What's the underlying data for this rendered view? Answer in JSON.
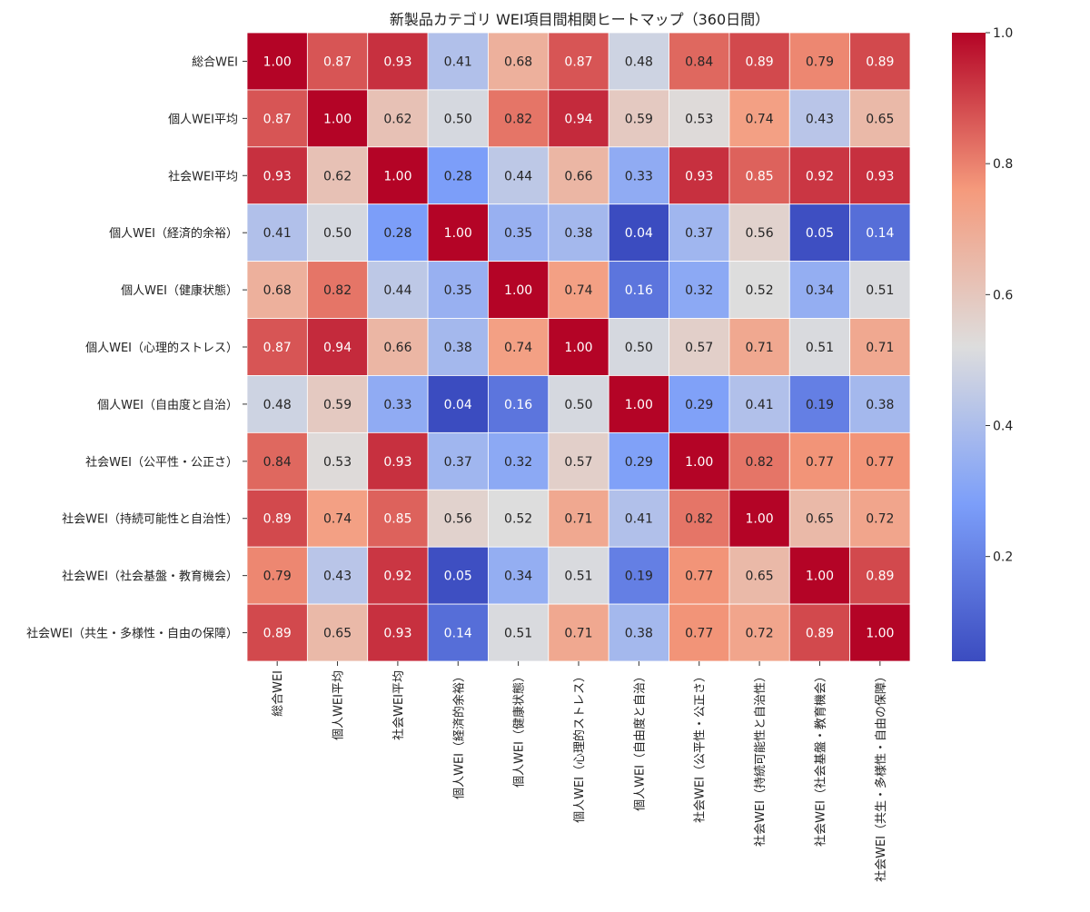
{
  "chart_data": {
    "type": "heatmap",
    "title": "新製品カテゴリ WEI項目間相関ヒートマップ（360日間）",
    "row_labels": [
      "総合WEI",
      "個人WEI平均",
      "社会WEI平均",
      "個人WEI（経済的余裕）",
      "個人WEI（健康状態）",
      "個人WEI（心理的ストレス）",
      "個人WEI（自由度と自治）",
      "社会WEI（公平性・公正さ）",
      "社会WEI（持続可能性と自治性）",
      "社会WEI（社会基盤・教育機会）",
      "社会WEI（共生・多様性・自由の保障）"
    ],
    "col_labels": [
      "総合WEI",
      "個人WEI平均",
      "社会WEI平均",
      "個人WEI（経済的余裕）",
      "個人WEI（健康状態）",
      "個人WEI（心理的ストレス）",
      "個人WEI（自由度と自治）",
      "社会WEI（公平性・公正さ）",
      "社会WEI（持続可能性と自治性）",
      "社会WEI（社会基盤・教育機会）",
      "社会WEI（共生・多様性・自由の保障）"
    ],
    "values": [
      [
        1.0,
        0.87,
        0.93,
        0.41,
        0.68,
        0.87,
        0.48,
        0.84,
        0.89,
        0.79,
        0.89
      ],
      [
        0.87,
        1.0,
        0.62,
        0.5,
        0.82,
        0.94,
        0.59,
        0.53,
        0.74,
        0.43,
        0.65
      ],
      [
        0.93,
        0.62,
        1.0,
        0.28,
        0.44,
        0.66,
        0.33,
        0.93,
        0.85,
        0.92,
        0.93
      ],
      [
        0.41,
        0.5,
        0.28,
        1.0,
        0.35,
        0.38,
        0.04,
        0.37,
        0.56,
        0.05,
        0.14
      ],
      [
        0.68,
        0.82,
        0.44,
        0.35,
        1.0,
        0.74,
        0.16,
        0.32,
        0.52,
        0.34,
        0.51
      ],
      [
        0.87,
        0.94,
        0.66,
        0.38,
        0.74,
        1.0,
        0.5,
        0.57,
        0.71,
        0.51,
        0.71
      ],
      [
        0.48,
        0.59,
        0.33,
        0.04,
        0.16,
        0.5,
        1.0,
        0.29,
        0.41,
        0.19,
        0.38
      ],
      [
        0.84,
        0.53,
        0.93,
        0.37,
        0.32,
        0.57,
        0.29,
        1.0,
        0.82,
        0.77,
        0.77
      ],
      [
        0.89,
        0.74,
        0.85,
        0.56,
        0.52,
        0.71,
        0.41,
        0.82,
        1.0,
        0.65,
        0.72
      ],
      [
        0.79,
        0.43,
        0.92,
        0.05,
        0.34,
        0.51,
        0.19,
        0.77,
        0.65,
        1.0,
        0.89
      ],
      [
        0.89,
        0.65,
        0.93,
        0.14,
        0.51,
        0.71,
        0.38,
        0.77,
        0.72,
        0.89,
        1.0
      ]
    ],
    "colormap": "coolwarm",
    "vmin": 0.04,
    "vmax": 1.0,
    "colorbar_ticks": [
      0.2,
      0.4,
      0.6,
      0.8,
      1.0
    ],
    "colorbar_tick_labels": [
      "0.2",
      "0.4",
      "0.6",
      "0.8",
      "1.0"
    ],
    "value_format": "0.00"
  }
}
